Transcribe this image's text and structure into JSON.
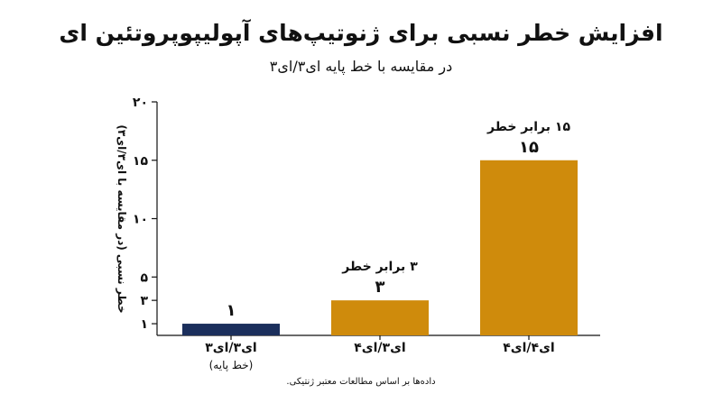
{
  "chart_data": {
    "type": "bar",
    "title": "افزایش خطر نسبی برای ژنوتیپ‌های آپولیپوپروتئین ای",
    "subtitle": "در مقایسه با خط پایه ای۳/ای۳",
    "ylabel": "خطر نسبی (در مقایسه با ای۳/ای۳)",
    "ylim": [
      0,
      20
    ],
    "yticks": [
      1,
      3,
      5,
      10,
      15,
      20
    ],
    "ytick_labels": [
      "۱",
      "۳",
      "۵",
      "۱۰",
      "۱۵",
      "۲۰"
    ],
    "categories": [
      "ای۳/ای۳",
      "ای۳/ای۴",
      "ای۴/ای۴"
    ],
    "category_sublabels": [
      "(خط پایه)",
      "",
      ""
    ],
    "values": [
      1,
      3,
      15
    ],
    "value_labels": [
      "۱",
      "۳",
      "۱۵"
    ],
    "annotations": [
      "",
      "۳ برابر خطر",
      "۱۵ برابر خطر"
    ],
    "colors": [
      "#1b2f5c",
      "#cf8b0c",
      "#cf8b0c"
    ],
    "grid": false,
    "source": "داده‌ها بر اساس مطالعات معتبر ژنتیکی."
  }
}
